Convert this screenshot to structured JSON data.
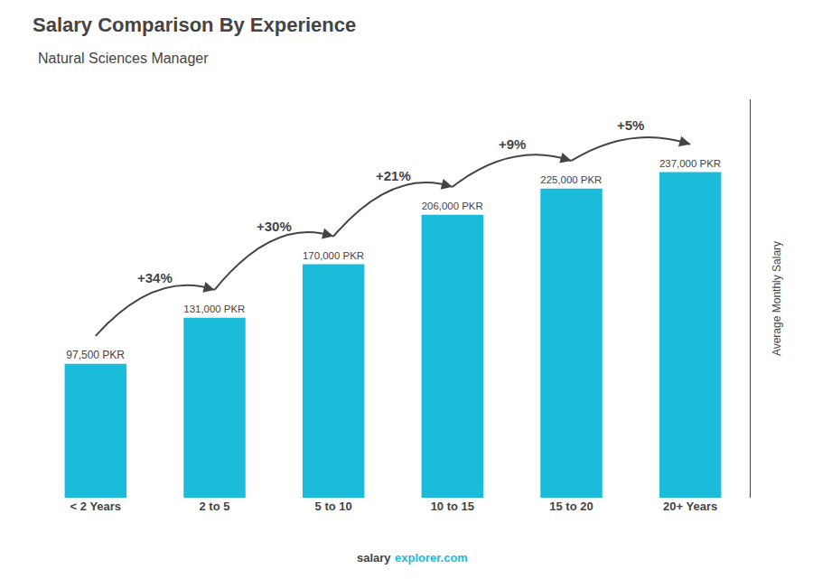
{
  "chart_data": {
    "type": "bar",
    "title": "Salary Comparison By Experience",
    "subtitle": "Natural Sciences Manager",
    "categories": [
      "< 2 Years",
      "2 to 5",
      "5 to 10",
      "10 to 15",
      "15 to 20",
      "20+ Years"
    ],
    "values": [
      97500,
      131000,
      170000,
      206000,
      225000,
      237000
    ],
    "value_labels": [
      "97,500 PKR",
      "131,000 PKR",
      "170,000 PKR",
      "206,000 PKR",
      "225,000 PKR",
      "237,000 PKR"
    ],
    "data_labels": true,
    "color": "#1BBCD9",
    "annotations": [
      "+34%",
      "+30%",
      "+21%",
      "+9%",
      "+5%"
    ],
    "ylabel": "Average Monthly Salary",
    "footer": [
      "salary",
      "explorer.com"
    ],
    "ylim": [
      0,
      290000
    ],
    "tick_labels": "x",
    "grid": false
  }
}
